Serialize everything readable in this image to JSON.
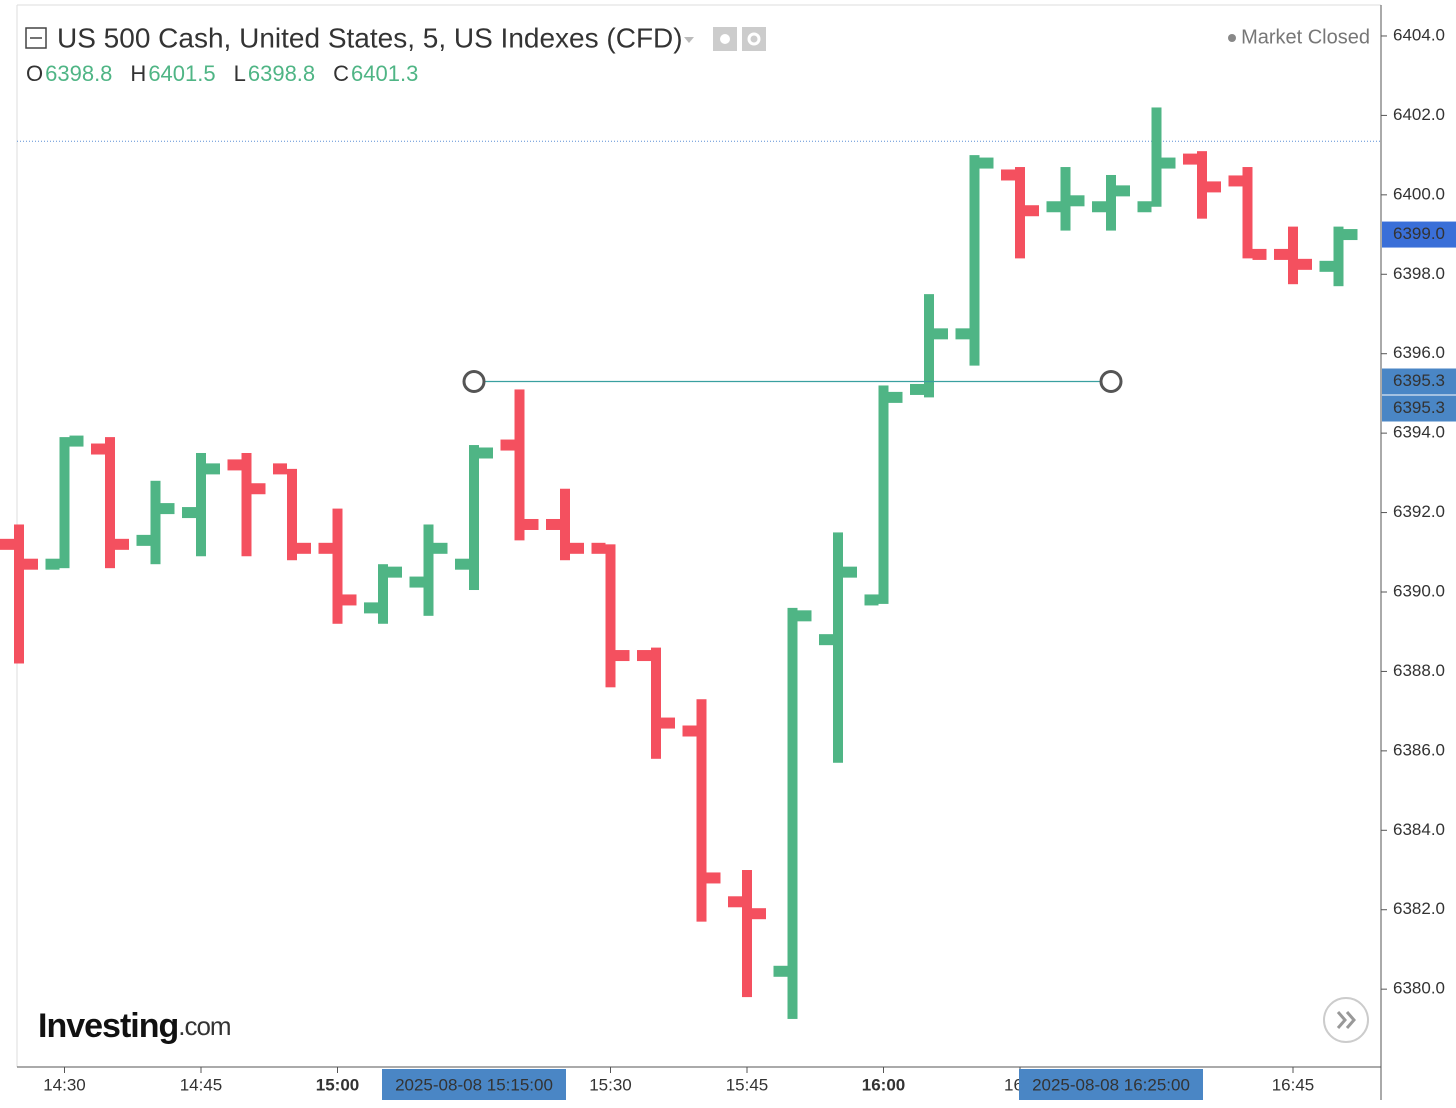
{
  "header": {
    "title": "US 500 Cash, United States, 5, US Indexes (CFD)",
    "ohlc_legend": [
      {
        "key": "O",
        "value": "6398.8"
      },
      {
        "key": "H",
        "value": "6401.5"
      },
      {
        "key": "L",
        "value": "6398.8"
      },
      {
        "key": "C",
        "value": "6401.3"
      }
    ],
    "status": "Market Closed"
  },
  "logo": {
    "name": "Investing",
    "suffix": ".com"
  },
  "chart_data": {
    "type": "ohlc",
    "x": [
      "14:25",
      "14:30",
      "14:35",
      "14:40",
      "14:45",
      "14:50",
      "14:55",
      "15:00",
      "15:05",
      "15:10",
      "15:15",
      "15:20",
      "15:25",
      "15:30",
      "15:35",
      "15:40",
      "15:45",
      "15:50",
      "15:55",
      "16:00",
      "16:05",
      "16:10",
      "16:15",
      "16:20",
      "16:25",
      "16:30",
      "16:35",
      "16:40",
      "16:45",
      "16:50"
    ],
    "open": [
      6391.2,
      6390.7,
      6393.6,
      6391.3,
      6392.0,
      6393.2,
      6393.1,
      6391.1,
      6389.6,
      6390.25,
      6390.7,
      6393.7,
      6391.7,
      6391.1,
      6388.4,
      6386.5,
      6382.2,
      6380.45,
      6388.8,
      6389.8,
      6395.1,
      6396.5,
      6400.5,
      6399.7,
      6399.7,
      6399.7,
      6400.9,
      6400.35,
      6398.5,
      6398.2
    ],
    "high": [
      6391.7,
      6393.9,
      6393.9,
      6392.8,
      6393.5,
      6393.5,
      6393.1,
      6392.1,
      6390.7,
      6391.7,
      6393.7,
      6395.1,
      6392.6,
      6391.2,
      6388.6,
      6387.3,
      6383.0,
      6389.6,
      6391.5,
      6395.2,
      6397.5,
      6401.0,
      6400.7,
      6400.7,
      6400.5,
      6402.2,
      6401.1,
      6400.7,
      6399.2,
      6399.2
    ],
    "low": [
      6388.2,
      6390.6,
      6390.6,
      6390.7,
      6390.9,
      6390.9,
      6390.8,
      6389.2,
      6389.2,
      6389.4,
      6390.05,
      6391.3,
      6390.8,
      6387.6,
      6385.8,
      6381.7,
      6379.8,
      6379.25,
      6385.7,
      6389.7,
      6394.9,
      6395.7,
      6398.4,
      6399.1,
      6399.1,
      6399.7,
      6399.4,
      6398.4,
      6397.75,
      6397.7
    ],
    "close": [
      6390.7,
      6393.8,
      6391.2,
      6392.1,
      6393.1,
      6392.6,
      6391.1,
      6389.8,
      6390.5,
      6391.1,
      6393.5,
      6391.7,
      6391.1,
      6388.4,
      6386.7,
      6382.8,
      6381.9,
      6389.4,
      6390.5,
      6394.9,
      6396.5,
      6400.8,
      6399.6,
      6399.85,
      6400.1,
      6400.8,
      6400.2,
      6398.5,
      6398.25,
      6399.0
    ],
    "up_color": "#4fb585",
    "down_color": "#f4505f",
    "ylim": [
      6378.04,
      6404.78
    ],
    "yticks": [
      {
        "value": 6380,
        "label": "6380.0"
      },
      {
        "value": 6382,
        "label": "6382.0"
      },
      {
        "value": 6384,
        "label": "6384.0"
      },
      {
        "value": 6386,
        "label": "6386.0"
      },
      {
        "value": 6388,
        "label": "6388.0"
      },
      {
        "value": 6390,
        "label": "6390.0"
      },
      {
        "value": 6392,
        "label": "6392.0"
      },
      {
        "value": 6394,
        "label": "6394.0"
      },
      {
        "value": 6396,
        "label": "6396.0"
      },
      {
        "value": 6398,
        "label": "6398.0"
      },
      {
        "value": 6400,
        "label": "6400.0"
      },
      {
        "value": 6402,
        "label": "6402.0"
      },
      {
        "value": 6404,
        "label": "6404.0"
      }
    ],
    "xticks": [
      "14:30",
      "14:45",
      "15:00",
      "15:30",
      "15:45",
      "16:00",
      {
        "value": "16:15",
        "label": "16"
      },
      "16:45"
    ],
    "price_tag": {
      "value": 6399,
      "label": "6399.0"
    },
    "reference_line": 6401.35,
    "trend_line": {
      "start": {
        "time": "2025-08-08 15:15:00",
        "price": 6395.3
      },
      "end": {
        "time": "2025-08-08 16:25:00",
        "price": 6395.3
      }
    }
  }
}
